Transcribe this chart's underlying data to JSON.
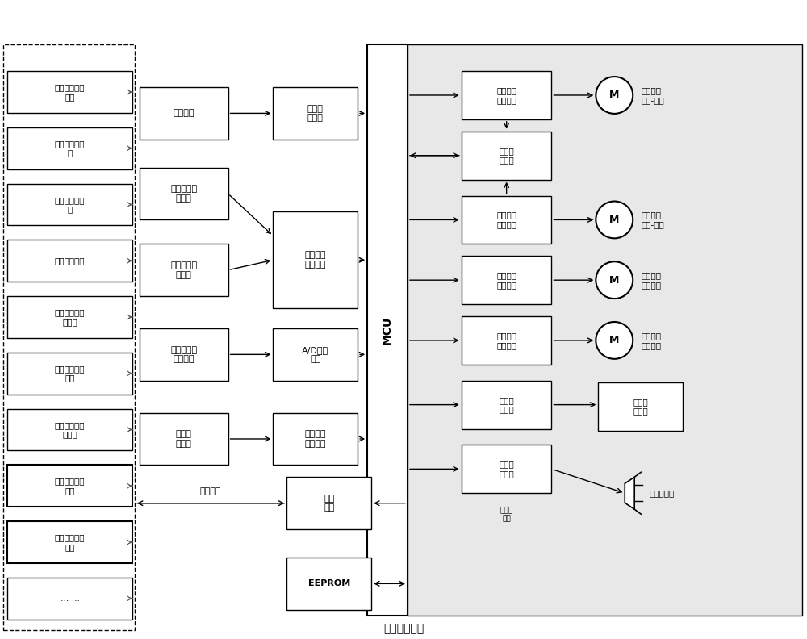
{
  "title": "背门控制单元",
  "bg_color": "#ffffff",
  "box_color": "#ffffff",
  "box_edge": "#000000",
  "text_color": "#000000",
  "left_units": [
    "遥控钥匙识别\n单元",
    "转向灯控制单\n元",
    "脚踢传感器单\n元",
    "车速检测单元",
    "变速箱档位识\n别单元",
    "驻车状态识别\n单元",
    "发动机状态识\n别单元",
    "中控状态识别\n单元",
    "环境温度识别\n单元",
    "… …"
  ],
  "input_signals": [
    "车身电瓶",
    "背门用户开\n关信号",
    "背门门锁开\n关信号",
    "背门防夹传\n感器信号",
    "背门霍\n尔信号"
  ],
  "middle_circuits": [
    "电源管\n理电路",
    "开关信号\n检测电路",
    "A/D检测\n电路",
    "霍尔信号\n检测电路"
  ],
  "right_circuits": [
    "背门电机\n驱动电路",
    "电流检\n测电路",
    "背门电机\n驱动电路",
    "门锁电机\n驱动电路",
    "门锁电机\n驱动电路",
    "霍尔驱\n动电路",
    "警示驱\n动电路"
  ],
  "motor_labels": [
    "背门驱动\n电机-左侧",
    "背门驱动\n电机-右侧",
    "背门门锁\n上锁电机",
    "背门门锁\n解锁电机"
  ],
  "other_labels": [
    "背门霍\n尔单元",
    "外置蜂鸣器"
  ],
  "bottom_circuits": [
    "通信\n电路",
    "EEPROM"
  ],
  "body_network": "车身网络",
  "inner_buzzer": "内置蜂\n鸣器"
}
